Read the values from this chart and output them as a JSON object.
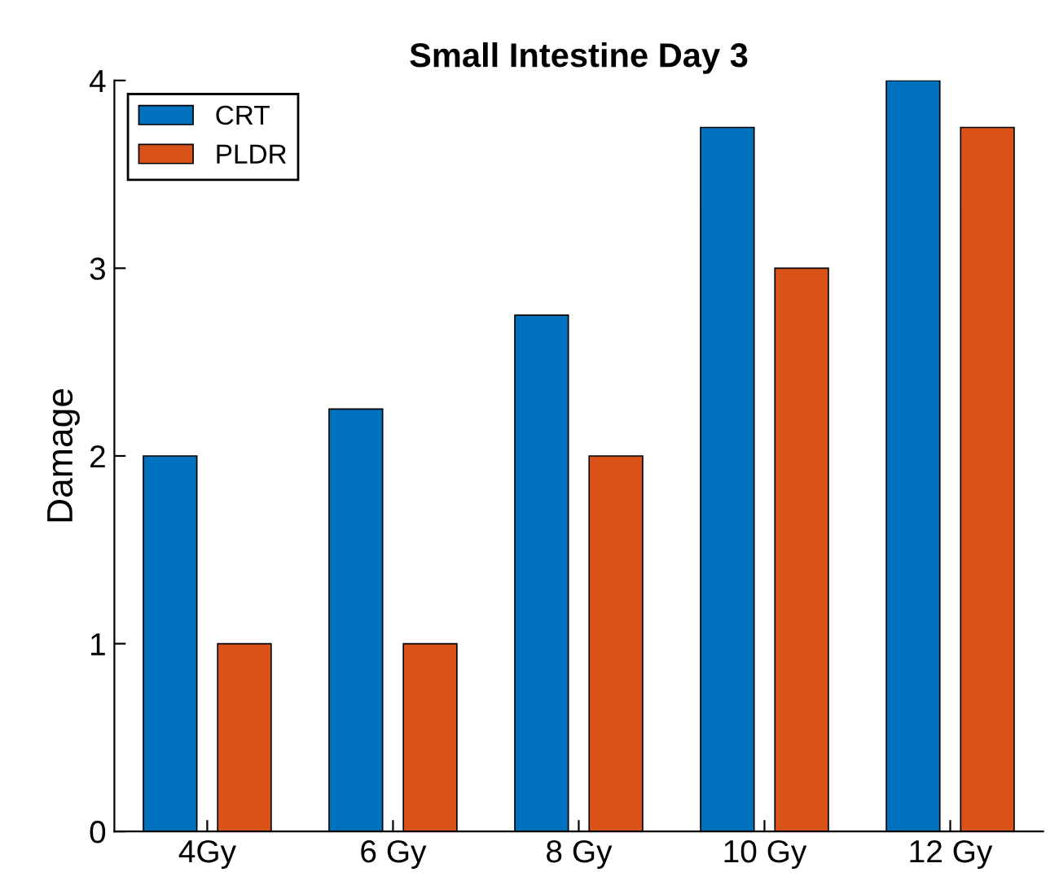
{
  "chart_data": {
    "type": "bar",
    "title": "Small Intestine Day 3",
    "ylabel": "Damage",
    "categories": [
      "4Gy",
      "6 Gy",
      "8 Gy",
      "10 Gy",
      "12 Gy"
    ],
    "series": [
      {
        "name": "CRT",
        "color": "#0072bd",
        "values": [
          2,
          2.25,
          2.75,
          3.75,
          4
        ]
      },
      {
        "name": "PLDR",
        "color": "#d95319",
        "values": [
          1,
          1,
          2,
          3,
          3.75
        ]
      }
    ],
    "ylim": [
      0,
      4
    ],
    "yticks": [
      0,
      1,
      2,
      3,
      4
    ],
    "grid": false,
    "legend": "top left"
  }
}
